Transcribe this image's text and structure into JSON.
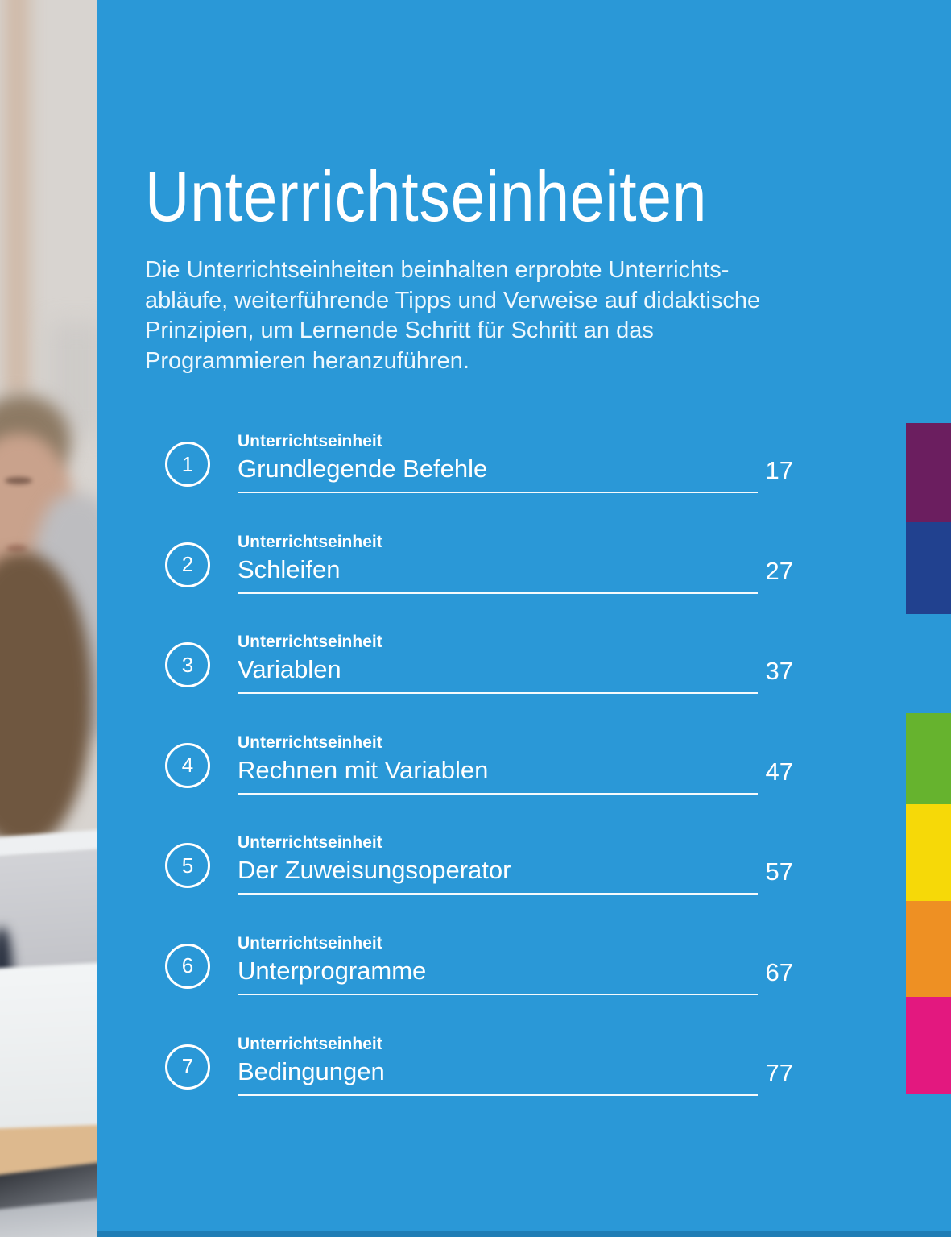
{
  "header": {
    "title": "Unterrichtseinheiten",
    "intro": "Die Unterrichtseinheiten beinhalten erprobte Unterrichts-\nabläufe, weiterführende Tipps und Verweise auf didaktische\nPrinzipien, um Lernende Schritt für Schritt an das\nProgrammieren heranzuführen."
  },
  "toc": {
    "items": [
      {
        "number": "1",
        "label": "Unterrichtseinheit",
        "title": "Grundlegende Befehle",
        "page": "17"
      },
      {
        "number": "2",
        "label": "Unterrichtseinheit",
        "title": "Schleifen",
        "page": "27"
      },
      {
        "number": "3",
        "label": "Unterrichtseinheit",
        "title": "Variablen",
        "page": "37"
      },
      {
        "number": "4",
        "label": "Unterrichtseinheit",
        "title": "Rechnen mit Variablen",
        "page": "47"
      },
      {
        "number": "5",
        "label": "Unterrichtseinheit",
        "title": "Der Zuweisungsoperator",
        "page": "57"
      },
      {
        "number": "6",
        "label": "Unterrichtseinheit",
        "title": "Unterprogramme",
        "page": "67"
      },
      {
        "number": "7",
        "label": "Unterrichtseinheit",
        "title": "Bedingungen",
        "page": "77"
      }
    ]
  },
  "side_tabs": [
    {
      "name": "purple",
      "color": "#6b1e5f"
    },
    {
      "name": "dark-blue",
      "color": "#21418f"
    },
    {
      "name": "green",
      "color": "#66b32e"
    },
    {
      "name": "yellow",
      "color": "#f6d908"
    },
    {
      "name": "orange",
      "color": "#ee9023"
    },
    {
      "name": "pink",
      "color": "#e3187f"
    }
  ],
  "colors": {
    "background": "#2a98d7",
    "bottom_bar": "#1f7db5",
    "text": "#ffffff"
  }
}
